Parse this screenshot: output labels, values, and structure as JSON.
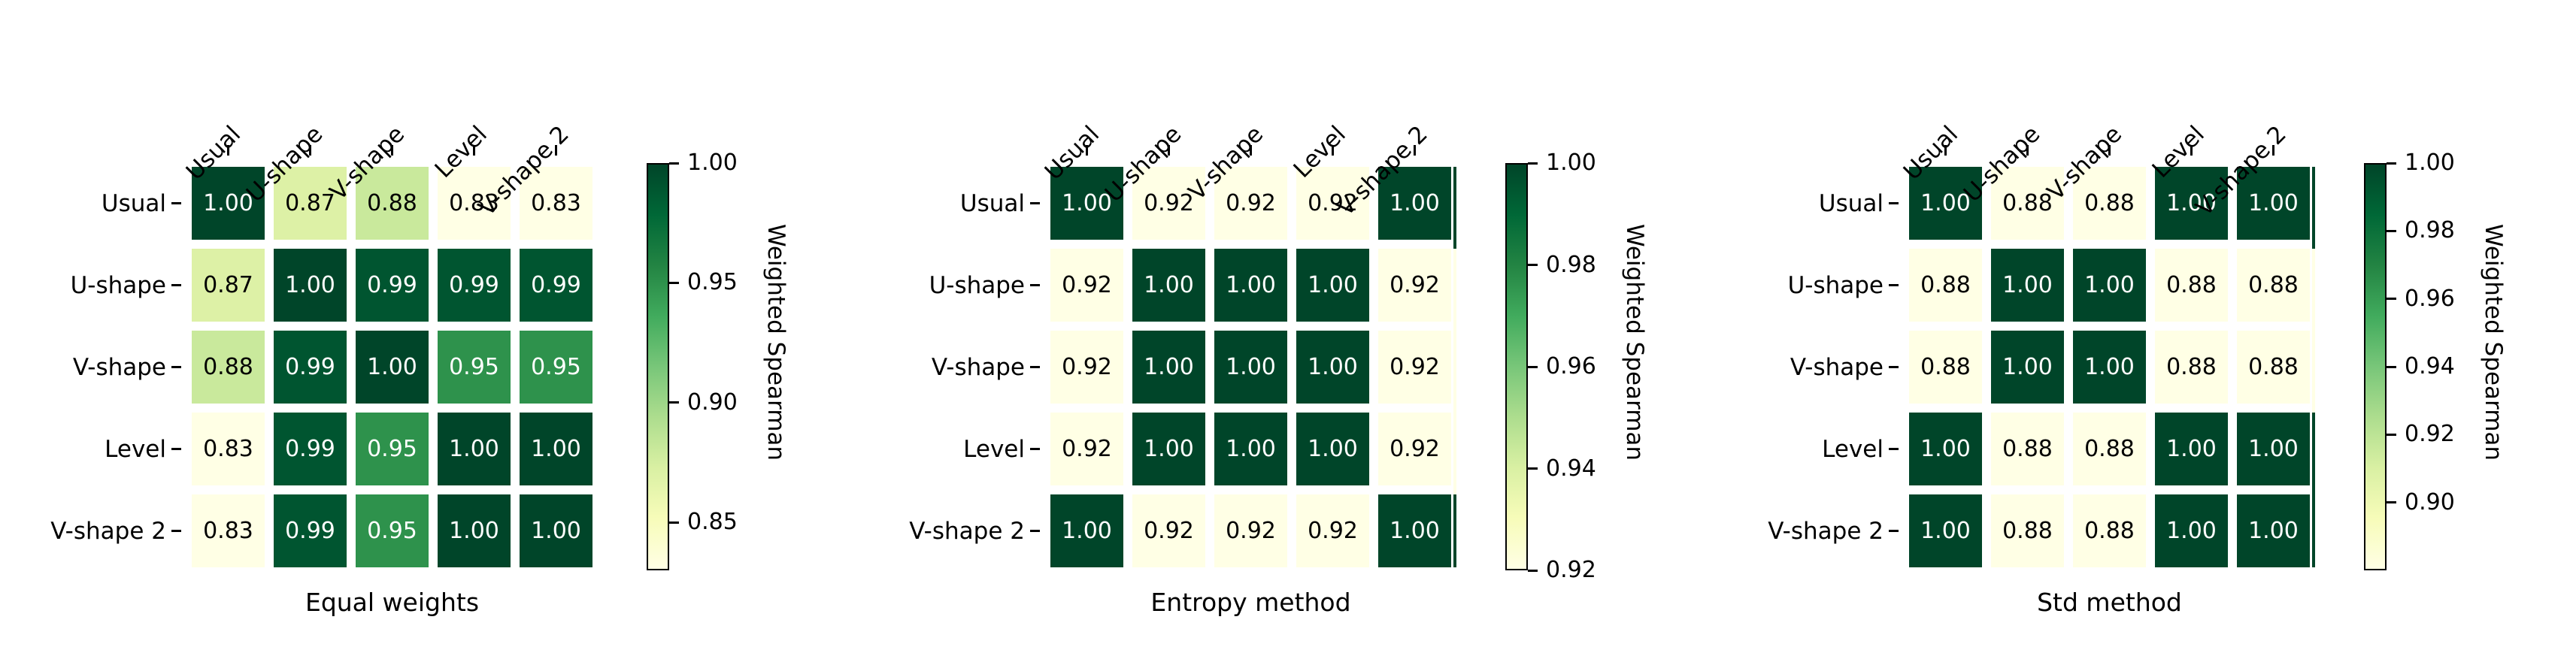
{
  "figure_background": "#ffffff",
  "colormap_name": "YlGn",
  "colormap_anchors": [
    "#ffffe5",
    "#f7fcb9",
    "#d9f0a3",
    "#addd8e",
    "#78c679",
    "#41ab5d",
    "#238443",
    "#006837",
    "#004529"
  ],
  "annotation_text_colors": {
    "on_dark": "#ffffff",
    "on_light": "#000000"
  },
  "chart_data": [
    {
      "type": "heatmap",
      "title": "Equal weights",
      "x_categories": [
        "Usual",
        "U-shape",
        "V-shape",
        "Level",
        "V-shape 2"
      ],
      "y_categories": [
        "Usual",
        "U-shape",
        "V-shape",
        "Level",
        "V-shape 2"
      ],
      "values": [
        [
          1.0,
          0.87,
          0.88,
          0.83,
          0.83
        ],
        [
          0.87,
          1.0,
          0.99,
          0.99,
          0.99
        ],
        [
          0.88,
          0.99,
          1.0,
          0.95,
          0.95
        ],
        [
          0.83,
          0.99,
          0.95,
          1.0,
          1.0
        ],
        [
          0.83,
          0.99,
          0.95,
          1.0,
          1.0
        ]
      ],
      "annot": [
        [
          "1.00",
          "0.87",
          "0.88",
          "0.83",
          "0.83"
        ],
        [
          "0.87",
          "1.00",
          "0.99",
          "0.99",
          "0.99"
        ],
        [
          "0.88",
          "0.99",
          "1.00",
          "0.95",
          "0.95"
        ],
        [
          "0.83",
          "0.99",
          "0.95",
          "1.00",
          "1.00"
        ],
        [
          "0.83",
          "0.99",
          "0.95",
          "1.00",
          "1.00"
        ]
      ],
      "vmin": 0.83,
      "vmax": 1.0,
      "colorbar": {
        "label": "Weighted Spearman",
        "ticks": [
          1.0,
          0.95,
          0.9,
          0.85
        ],
        "tick_labels": [
          "1.00",
          "0.95",
          "0.90",
          "0.85"
        ]
      },
      "edge_strip": false
    },
    {
      "type": "heatmap",
      "title": "Entropy method",
      "x_categories": [
        "Usual",
        "U-shape",
        "V-shape",
        "Level",
        "V-shape 2"
      ],
      "y_categories": [
        "Usual",
        "U-shape",
        "V-shape",
        "Level",
        "V-shape 2"
      ],
      "values": [
        [
          1.0,
          0.92,
          0.92,
          0.92,
          1.0
        ],
        [
          0.92,
          1.0,
          1.0,
          1.0,
          0.92
        ],
        [
          0.92,
          1.0,
          1.0,
          1.0,
          0.92
        ],
        [
          0.92,
          1.0,
          1.0,
          1.0,
          0.92
        ],
        [
          1.0,
          0.92,
          0.92,
          0.92,
          1.0
        ]
      ],
      "annot": [
        [
          "1.00",
          "0.92",
          "0.92",
          "0.92",
          "1.00"
        ],
        [
          "0.92",
          "1.00",
          "1.00",
          "1.00",
          "0.92"
        ],
        [
          "0.92",
          "1.00",
          "1.00",
          "1.00",
          "0.92"
        ],
        [
          "0.92",
          "1.00",
          "1.00",
          "1.00",
          "0.92"
        ],
        [
          "1.00",
          "0.92",
          "0.92",
          "0.92",
          "1.00"
        ]
      ],
      "vmin": 0.92,
      "vmax": 1.0,
      "colorbar": {
        "label": "Weighted Spearman",
        "ticks": [
          1.0,
          0.98,
          0.96,
          0.94,
          0.92
        ],
        "tick_labels": [
          "1.00",
          "0.98",
          "0.96",
          "0.94",
          "0.92"
        ]
      },
      "edge_strip": true
    },
    {
      "type": "heatmap",
      "title": "Std method",
      "x_categories": [
        "Usual",
        "U-shape",
        "V-shape",
        "Level",
        "V-shape 2"
      ],
      "y_categories": [
        "Usual",
        "U-shape",
        "V-shape",
        "Level",
        "V-shape 2"
      ],
      "values": [
        [
          1.0,
          0.88,
          0.88,
          1.0,
          1.0
        ],
        [
          0.88,
          1.0,
          1.0,
          0.88,
          0.88
        ],
        [
          0.88,
          1.0,
          1.0,
          0.88,
          0.88
        ],
        [
          1.0,
          0.88,
          0.88,
          1.0,
          1.0
        ],
        [
          1.0,
          0.88,
          0.88,
          1.0,
          1.0
        ]
      ],
      "annot": [
        [
          "1.00",
          "0.88",
          "0.88",
          "1.00",
          "1.00"
        ],
        [
          "0.88",
          "1.00",
          "1.00",
          "0.88",
          "0.88"
        ],
        [
          "0.88",
          "1.00",
          "1.00",
          "0.88",
          "0.88"
        ],
        [
          "1.00",
          "0.88",
          "0.88",
          "1.00",
          "1.00"
        ],
        [
          "1.00",
          "0.88",
          "0.88",
          "1.00",
          "1.00"
        ]
      ],
      "vmin": 0.88,
      "vmax": 1.0,
      "colorbar": {
        "label": "Weighted Spearman",
        "ticks": [
          1.0,
          0.98,
          0.96,
          0.94,
          0.92,
          0.9
        ],
        "tick_labels": [
          "1.00",
          "0.98",
          "0.96",
          "0.94",
          "0.92",
          "0.90"
        ]
      },
      "edge_strip": true
    }
  ]
}
